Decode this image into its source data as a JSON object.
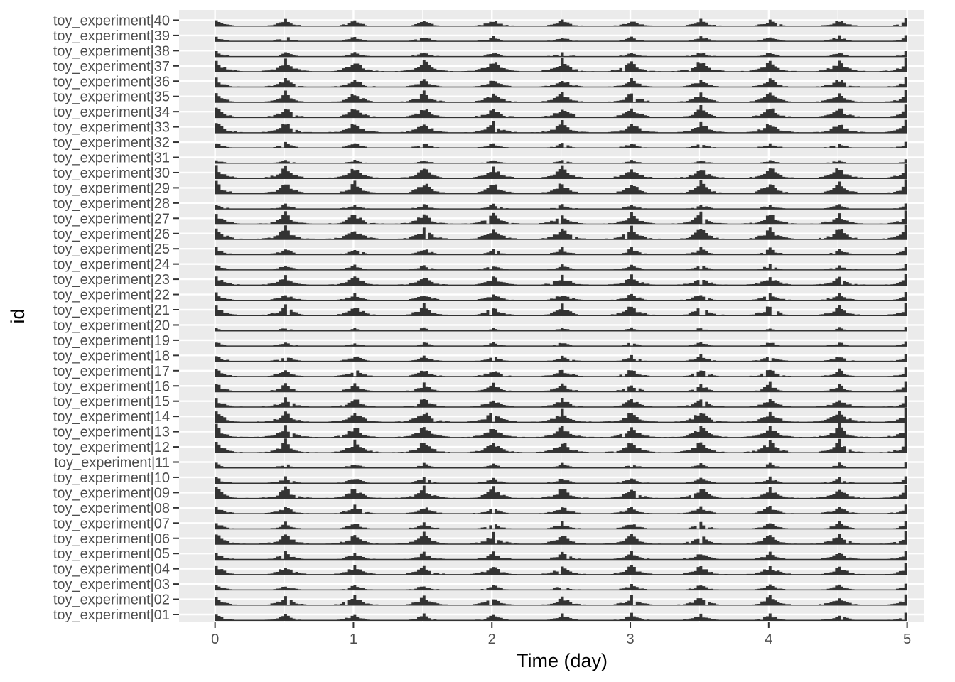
{
  "chart_data": {
    "type": "bar",
    "xlabel": "Time (day)",
    "ylabel": "id",
    "xlim": [
      -0.26,
      5.12
    ],
    "x_ticks": [
      "0",
      "1",
      "2",
      "3",
      "4",
      "5"
    ],
    "y_categories": [
      "toy_experiment|01",
      "toy_experiment|02",
      "toy_experiment|03",
      "toy_experiment|04",
      "toy_experiment|05",
      "toy_experiment|06",
      "toy_experiment|07",
      "toy_experiment|08",
      "toy_experiment|09",
      "toy_experiment|10",
      "toy_experiment|11",
      "toy_experiment|12",
      "toy_experiment|13",
      "toy_experiment|14",
      "toy_experiment|15",
      "toy_experiment|16",
      "toy_experiment|17",
      "toy_experiment|18",
      "toy_experiment|19",
      "toy_experiment|20",
      "toy_experiment|21",
      "toy_experiment|22",
      "toy_experiment|23",
      "toy_experiment|24",
      "toy_experiment|25",
      "toy_experiment|26",
      "toy_experiment|27",
      "toy_experiment|28",
      "toy_experiment|29",
      "toy_experiment|30",
      "toy_experiment|31",
      "toy_experiment|32",
      "toy_experiment|33",
      "toy_experiment|34",
      "toy_experiment|35",
      "toy_experiment|36",
      "toy_experiment|37",
      "toy_experiment|38",
      "toy_experiment|39",
      "toy_experiment|40"
    ],
    "row_activity_scale": [
      0.55,
      0.75,
      0.45,
      0.8,
      0.6,
      0.9,
      0.55,
      0.65,
      0.95,
      0.5,
      0.4,
      1.0,
      1.0,
      1.0,
      0.75,
      0.7,
      0.65,
      0.5,
      0.35,
      0.3,
      0.9,
      0.6,
      0.8,
      0.45,
      0.55,
      1.0,
      0.95,
      0.4,
      1.0,
      1.0,
      0.3,
      0.45,
      0.9,
      0.9,
      0.85,
      0.7,
      1.0,
      0.4,
      0.45,
      0.55
    ],
    "pattern": "activity peaks at every 0.5 day",
    "grid": true,
    "legend": "none",
    "colors": {
      "panel": "#ebebeb",
      "grid": "#ffffff",
      "bars": "#333333",
      "text": "#4d4d4d"
    }
  }
}
